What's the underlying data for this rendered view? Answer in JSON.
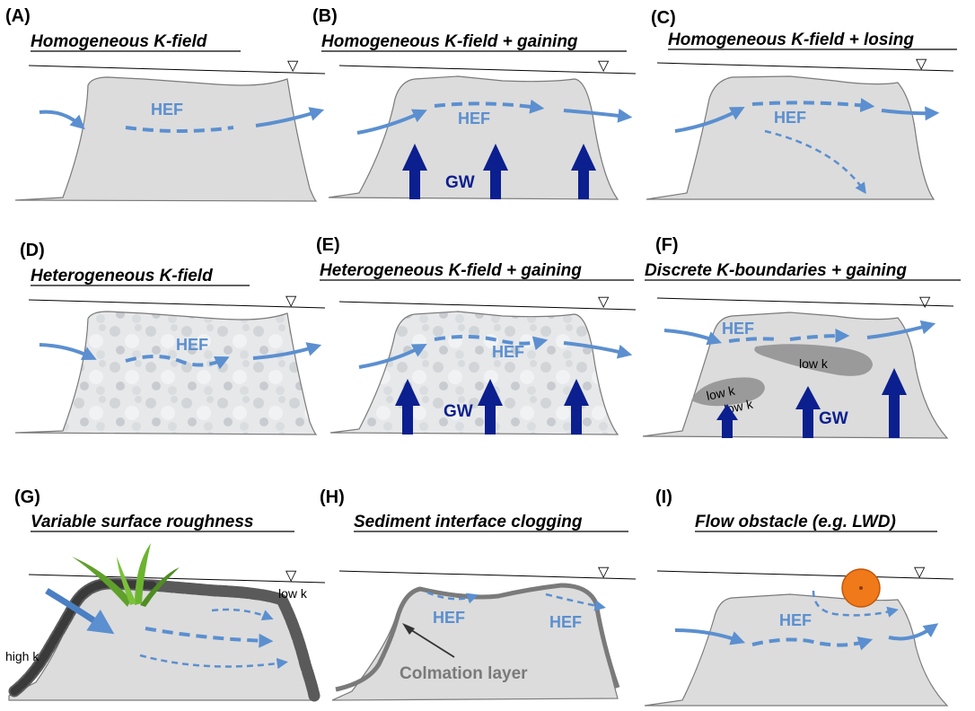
{
  "panels": [
    {
      "letter": "(A)",
      "title": "Homogeneous K-field",
      "hef": "HEF"
    },
    {
      "letter": "(B)",
      "title": "Homogeneous K-field + gaining",
      "hef": "HEF",
      "gw": "GW"
    },
    {
      "letter": "(C)",
      "title": "Homogeneous K-field + losing",
      "hef": "HEF"
    },
    {
      "letter": "(D)",
      "title": "Heterogeneous K-field",
      "hef": "HEF"
    },
    {
      "letter": "(E)",
      "title": "Heterogeneous K-field + gaining",
      "hef": "HEF",
      "gw": "GW"
    },
    {
      "letter": "(F)",
      "title": "Discrete K-boundaries + gaining",
      "hef": "HEF",
      "gw": "GW",
      "low_k_1": "low k",
      "low_k_2": "low k",
      "low_k_3": "low k"
    },
    {
      "letter": "(G)",
      "title": "Variable surface roughness",
      "low_k": "low k",
      "high_k": "high k"
    },
    {
      "letter": "(H)",
      "title": "Sediment interface clogging",
      "hef_1": "HEF",
      "hef_2": "HEF",
      "colmation": "Colmation layer"
    },
    {
      "letter": "(I)",
      "title": "Flow obstacle (e.g. LWD)",
      "hef": "HEF"
    }
  ],
  "symbols": {
    "water_table": "▽"
  },
  "colors": {
    "flow": "#5b8fd0",
    "groundwater": "#0b1f8f",
    "bed": "#dcdcdc",
    "obstacle": "#f07a1a",
    "grass": "#5fa02a"
  }
}
